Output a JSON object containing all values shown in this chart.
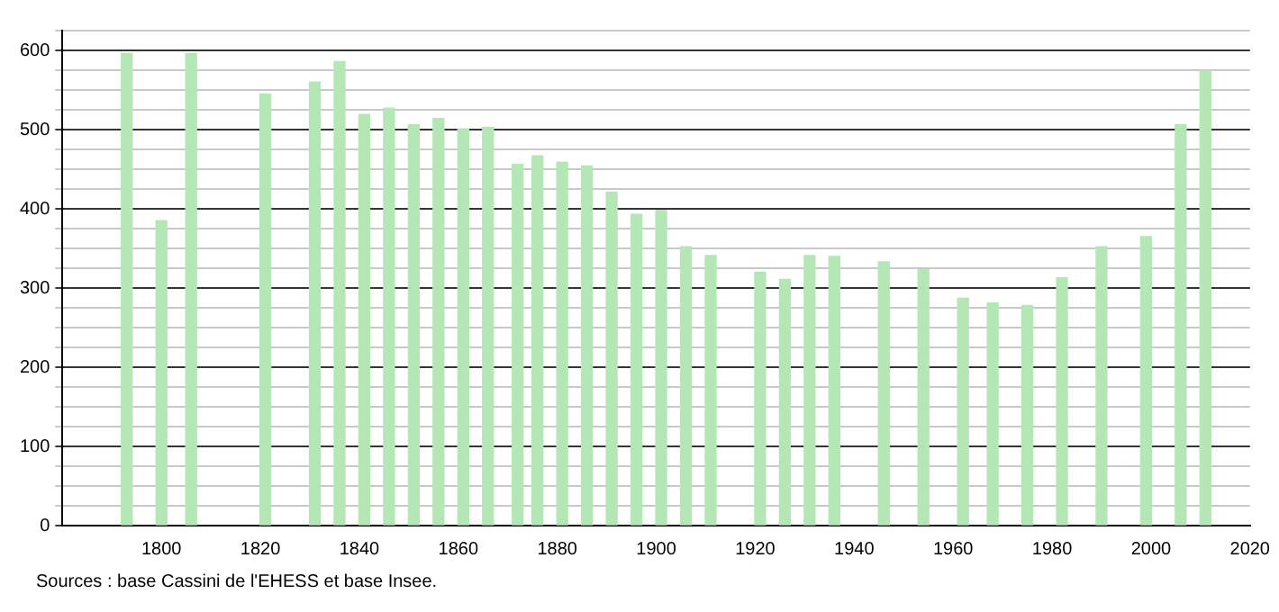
{
  "chart_data": {
    "type": "bar",
    "x": [
      1793,
      1800,
      1806,
      1821,
      1831,
      1836,
      1841,
      1846,
      1851,
      1856,
      1861,
      1866,
      1872,
      1876,
      1881,
      1886,
      1891,
      1896,
      1901,
      1906,
      1911,
      1921,
      1926,
      1931,
      1936,
      1946,
      1954,
      1962,
      1968,
      1975,
      1982,
      1990,
      1999,
      2006,
      2011
    ],
    "values": [
      596,
      385,
      596,
      545,
      560,
      586,
      519,
      527,
      506,
      514,
      501,
      503,
      456,
      467,
      459,
      454,
      421,
      393,
      398,
      352,
      341,
      320,
      311,
      341,
      340,
      333,
      323,
      287,
      281,
      278,
      313,
      352,
      365,
      506,
      574
    ],
    "color": "#b5e6b5",
    "xlim": [
      1780,
      2020
    ],
    "xticks": [
      1800,
      1820,
      1840,
      1860,
      1880,
      1900,
      1920,
      1940,
      1960,
      1980,
      2000,
      2020
    ],
    "ylim": [
      0,
      625
    ],
    "yticks": [
      0,
      {
        "value": 25,
        "label": null
      },
      {
        "value": 50,
        "label": null
      },
      {
        "value": 75,
        "label": null
      },
      100,
      {
        "value": 125,
        "label": null
      },
      {
        "value": 150,
        "label": null
      },
      {
        "value": 175,
        "label": null
      },
      200,
      {
        "value": 225,
        "label": null
      },
      {
        "value": 250,
        "label": null
      },
      {
        "value": 275,
        "label": null
      },
      300,
      {
        "value": 325,
        "label": null
      },
      {
        "value": 350,
        "label": null
      },
      {
        "value": 375,
        "label": null
      },
      400,
      {
        "value": 425,
        "label": null
      },
      {
        "value": 450,
        "label": null
      },
      {
        "value": 475,
        "label": null
      },
      500,
      {
        "value": 525,
        "label": null
      },
      {
        "value": 550,
        "label": null
      },
      {
        "value": 575,
        "label": null
      },
      600,
      {
        "value": 625,
        "label": null
      }
    ],
    "grid": "y",
    "annotations": [
      "Sources : base Cassini de l'EHESS et base Insee."
    ]
  }
}
